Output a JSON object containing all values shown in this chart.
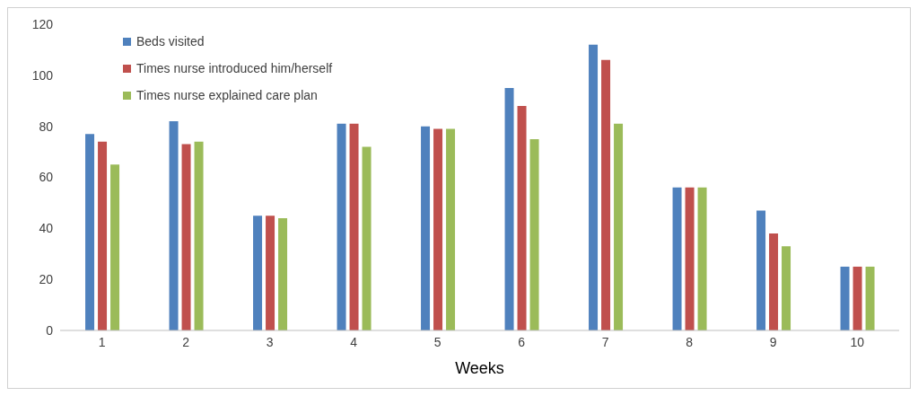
{
  "chart_data": {
    "type": "bar",
    "xlabel": "Weeks",
    "categories": [
      "1",
      "2",
      "3",
      "4",
      "5",
      "6",
      "7",
      "8",
      "9",
      "10"
    ],
    "series": [
      {
        "name": "Beds visited",
        "color": "#4f81bd",
        "values": [
          77,
          82,
          45,
          81,
          80,
          95,
          112,
          56,
          47,
          25
        ]
      },
      {
        "name": "Times nurse introduced him/herself",
        "color": "#c0504d",
        "values": [
          74,
          73,
          45,
          81,
          79,
          88,
          106,
          56,
          38,
          25
        ]
      },
      {
        "name": "Times nurse explained care plan",
        "color": "#9bbb59",
        "values": [
          65,
          74,
          44,
          72,
          79,
          75,
          81,
          56,
          33,
          25
        ]
      }
    ],
    "ylim": [
      0,
      120
    ],
    "yticks": [
      0,
      20,
      40,
      60,
      80,
      100,
      120
    ],
    "grid": false,
    "legend": "top left"
  }
}
